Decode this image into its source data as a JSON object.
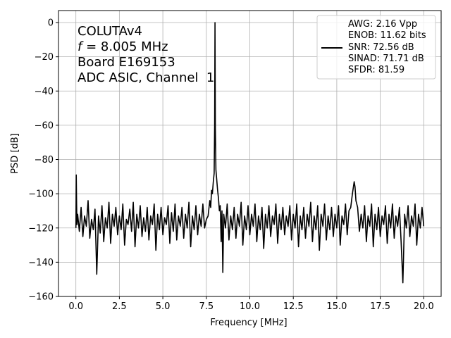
{
  "chart_data": {
    "type": "line",
    "xlabel": "Frequency [MHz]",
    "ylabel": "PSD [dB]",
    "xlim": [
      -1.0,
      21.0
    ],
    "ylim": [
      -160,
      7
    ],
    "xticks": [
      0.0,
      2.5,
      5.0,
      7.5,
      10.0,
      12.5,
      15.0,
      17.5,
      20.0
    ],
    "xtick_labels": [
      "0.0",
      "2.5",
      "5.0",
      "7.5",
      "10.0",
      "12.5",
      "15.0",
      "17.5",
      "20.0"
    ],
    "yticks": [
      0,
      -20,
      -40,
      -60,
      -80,
      -100,
      -120,
      -140,
      -160
    ],
    "ytick_labels": [
      "0",
      "−20",
      "−40",
      "−60",
      "−80",
      "−100",
      "−120",
      "−140",
      "−160"
    ],
    "grid": true,
    "line_color": "#000000",
    "annotation": {
      "line1": "COLUTAv4",
      "line2_var": "f",
      "line2_rest": " = 8.005 MHz",
      "line3": "Board E169153",
      "line4": "ADC ASIC, Channel  1"
    },
    "legend": {
      "placement": "upper right",
      "lines": [
        "AWG: 2.16 Vpp",
        "ENOB: 11.62 bits",
        "SNR: 72.56 dB",
        "SINAD: 71.71 dB",
        "SFDR: 81.59"
      ]
    },
    "series": [
      {
        "points": [
          [
            0.0,
            -120
          ],
          [
            0.02,
            -89
          ],
          [
            0.04,
            -106
          ],
          [
            0.06,
            -118
          ],
          [
            0.1,
            -112
          ],
          [
            0.2,
            -122
          ],
          [
            0.3,
            -108
          ],
          [
            0.4,
            -125
          ],
          [
            0.5,
            -113
          ],
          [
            0.6,
            -119
          ],
          [
            0.7,
            -104
          ],
          [
            0.8,
            -126
          ],
          [
            0.9,
            -115
          ],
          [
            1.0,
            -121
          ],
          [
            1.1,
            -109
          ],
          [
            1.2,
            -147
          ],
          [
            1.3,
            -113
          ],
          [
            1.4,
            -123
          ],
          [
            1.5,
            -107
          ],
          [
            1.6,
            -128
          ],
          [
            1.7,
            -114
          ],
          [
            1.8,
            -120
          ],
          [
            1.9,
            -105
          ],
          [
            2.0,
            -129
          ],
          [
            2.1,
            -112
          ],
          [
            2.2,
            -119
          ],
          [
            2.3,
            -108
          ],
          [
            2.4,
            -124
          ],
          [
            2.5,
            -113
          ],
          [
            2.6,
            -121
          ],
          [
            2.7,
            -106
          ],
          [
            2.8,
            -130
          ],
          [
            2.9,
            -115
          ],
          [
            3.0,
            -118
          ],
          [
            3.1,
            -109
          ],
          [
            3.2,
            -122
          ],
          [
            3.3,
            -105
          ],
          [
            3.4,
            -131
          ],
          [
            3.5,
            -112
          ],
          [
            3.6,
            -120
          ],
          [
            3.7,
            -107
          ],
          [
            3.8,
            -125
          ],
          [
            3.9,
            -114
          ],
          [
            4.0,
            -122
          ],
          [
            4.1,
            -108
          ],
          [
            4.2,
            -127
          ],
          [
            4.3,
            -113
          ],
          [
            4.4,
            -118
          ],
          [
            4.5,
            -106
          ],
          [
            4.6,
            -133
          ],
          [
            4.7,
            -112
          ],
          [
            4.8,
            -121
          ],
          [
            4.9,
            -108
          ],
          [
            5.0,
            -124
          ],
          [
            5.1,
            -114
          ],
          [
            5.2,
            -118
          ],
          [
            5.3,
            -107
          ],
          [
            5.4,
            -129
          ],
          [
            5.5,
            -111
          ],
          [
            5.6,
            -122
          ],
          [
            5.7,
            -106
          ],
          [
            5.8,
            -127
          ],
          [
            5.9,
            -113
          ],
          [
            6.0,
            -119
          ],
          [
            6.1,
            -108
          ],
          [
            6.2,
            -126
          ],
          [
            6.3,
            -112
          ],
          [
            6.4,
            -120
          ],
          [
            6.5,
            -105
          ],
          [
            6.6,
            -131
          ],
          [
            6.7,
            -113
          ],
          [
            6.8,
            -121
          ],
          [
            6.9,
            -107
          ],
          [
            7.0,
            -124
          ],
          [
            7.1,
            -112
          ],
          [
            7.2,
            -119
          ],
          [
            7.3,
            -106
          ],
          [
            7.4,
            -120
          ],
          [
            7.5,
            -115
          ],
          [
            7.6,
            -113
          ],
          [
            7.7,
            -104
          ],
          [
            7.75,
            -108
          ],
          [
            7.8,
            -98
          ],
          [
            7.85,
            -100
          ],
          [
            7.9,
            -93
          ],
          [
            7.95,
            -88
          ],
          [
            7.98,
            -60
          ],
          [
            8.0,
            0
          ],
          [
            8.02,
            -62
          ],
          [
            8.05,
            -86
          ],
          [
            8.1,
            -92
          ],
          [
            8.15,
            -98
          ],
          [
            8.2,
            -103
          ],
          [
            8.25,
            -110
          ],
          [
            8.3,
            -107
          ],
          [
            8.35,
            -128
          ],
          [
            8.4,
            -110
          ],
          [
            8.45,
            -146
          ],
          [
            8.5,
            -112
          ],
          [
            8.6,
            -120
          ],
          [
            8.7,
            -106
          ],
          [
            8.8,
            -127
          ],
          [
            8.9,
            -113
          ],
          [
            9.0,
            -121
          ],
          [
            9.1,
            -108
          ],
          [
            9.2,
            -126
          ],
          [
            9.3,
            -112
          ],
          [
            9.4,
            -119
          ],
          [
            9.5,
            -105
          ],
          [
            9.6,
            -130
          ],
          [
            9.7,
            -113
          ],
          [
            9.8,
            -121
          ],
          [
            9.9,
            -107
          ],
          [
            10.0,
            -124
          ],
          [
            10.1,
            -112
          ],
          [
            10.2,
            -119
          ],
          [
            10.3,
            -106
          ],
          [
            10.4,
            -128
          ],
          [
            10.5,
            -113
          ],
          [
            10.6,
            -121
          ],
          [
            10.7,
            -108
          ],
          [
            10.8,
            -132
          ],
          [
            10.9,
            -112
          ],
          [
            11.0,
            -120
          ],
          [
            11.1,
            -107
          ],
          [
            11.2,
            -125
          ],
          [
            11.3,
            -113
          ],
          [
            11.4,
            -118
          ],
          [
            11.5,
            -106
          ],
          [
            11.6,
            -129
          ],
          [
            11.7,
            -112
          ],
          [
            11.8,
            -121
          ],
          [
            11.9,
            -108
          ],
          [
            12.0,
            -124
          ],
          [
            12.1,
            -113
          ],
          [
            12.2,
            -119
          ],
          [
            12.3,
            -107
          ],
          [
            12.4,
            -127
          ],
          [
            12.5,
            -112
          ],
          [
            12.6,
            -120
          ],
          [
            12.7,
            -106
          ],
          [
            12.8,
            -131
          ],
          [
            12.9,
            -113
          ],
          [
            13.0,
            -121
          ],
          [
            13.1,
            -108
          ],
          [
            13.2,
            -126
          ],
          [
            13.3,
            -112
          ],
          [
            13.4,
            -119
          ],
          [
            13.5,
            -105
          ],
          [
            13.6,
            -128
          ],
          [
            13.7,
            -113
          ],
          [
            13.8,
            -121
          ],
          [
            13.9,
            -107
          ],
          [
            14.0,
            -133
          ],
          [
            14.1,
            -112
          ],
          [
            14.2,
            -119
          ],
          [
            14.3,
            -106
          ],
          [
            14.4,
            -127
          ],
          [
            14.5,
            -113
          ],
          [
            14.6,
            -121
          ],
          [
            14.7,
            -108
          ],
          [
            14.8,
            -125
          ],
          [
            14.9,
            -112
          ],
          [
            15.0,
            -120
          ],
          [
            15.1,
            -107
          ],
          [
            15.2,
            -130
          ],
          [
            15.3,
            -113
          ],
          [
            15.4,
            -118
          ],
          [
            15.5,
            -106
          ],
          [
            15.6,
            -124
          ],
          [
            15.7,
            -110
          ],
          [
            15.8,
            -108
          ],
          [
            15.9,
            -100
          ],
          [
            16.0,
            -93
          ],
          [
            16.05,
            -96
          ],
          [
            16.1,
            -104
          ],
          [
            16.2,
            -108
          ],
          [
            16.3,
            -122
          ],
          [
            16.4,
            -112
          ],
          [
            16.5,
            -120
          ],
          [
            16.6,
            -107
          ],
          [
            16.7,
            -128
          ],
          [
            16.8,
            -113
          ],
          [
            16.9,
            -119
          ],
          [
            17.0,
            -106
          ],
          [
            17.1,
            -131
          ],
          [
            17.2,
            -112
          ],
          [
            17.3,
            -121
          ],
          [
            17.4,
            -108
          ],
          [
            17.5,
            -125
          ],
          [
            17.6,
            -113
          ],
          [
            17.7,
            -118
          ],
          [
            17.8,
            -107
          ],
          [
            17.9,
            -129
          ],
          [
            18.0,
            -112
          ],
          [
            18.1,
            -120
          ],
          [
            18.2,
            -106
          ],
          [
            18.3,
            -126
          ],
          [
            18.4,
            -113
          ],
          [
            18.5,
            -119
          ],
          [
            18.6,
            -108
          ],
          [
            18.7,
            -128
          ],
          [
            18.8,
            -152
          ],
          [
            18.9,
            -112
          ],
          [
            19.0,
            -120
          ],
          [
            19.1,
            -107
          ],
          [
            19.2,
            -125
          ],
          [
            19.3,
            -113
          ],
          [
            19.4,
            -119
          ],
          [
            19.5,
            -106
          ],
          [
            19.6,
            -130
          ],
          [
            19.7,
            -112
          ],
          [
            19.8,
            -120
          ],
          [
            19.9,
            -108
          ],
          [
            20.0,
            -119
          ]
        ]
      }
    ]
  }
}
